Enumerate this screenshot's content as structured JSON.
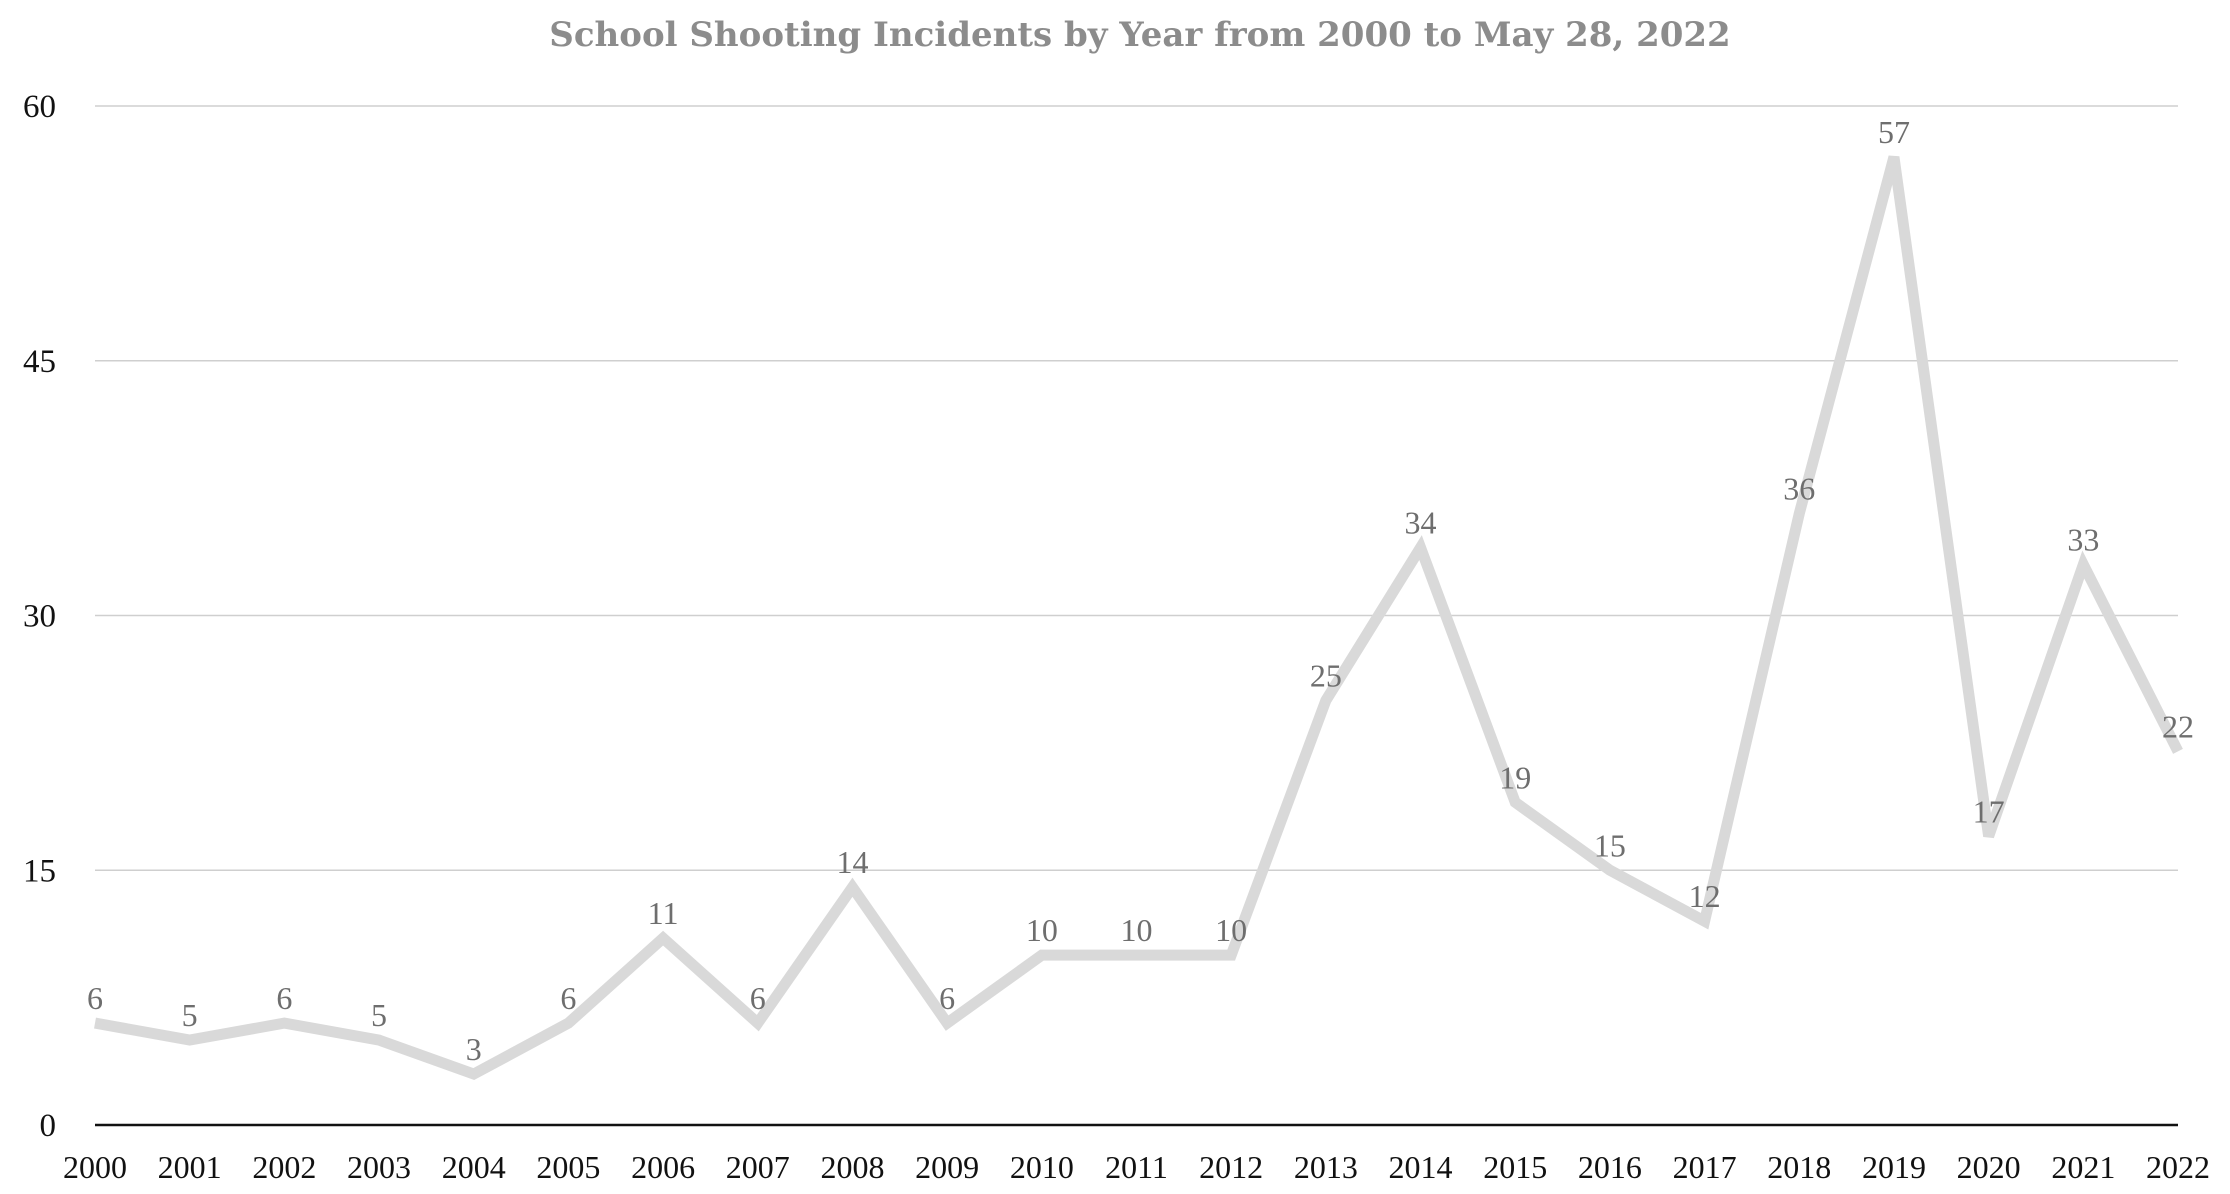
{
  "chart_data": {
    "type": "line",
    "title": "School Shooting Incidents by Year from 2000 to May 28, 2022",
    "xlabel": "",
    "ylabel": "",
    "categories": [
      "2000",
      "2001",
      "2002",
      "2003",
      "2004",
      "2005",
      "2006",
      "2007",
      "2008",
      "2009",
      "2010",
      "2011",
      "2012",
      "2013",
      "2014",
      "2015",
      "2016",
      "2017",
      "2018",
      "2019",
      "2020",
      "2021",
      "2022"
    ],
    "series": [
      {
        "values": [
          6,
          5,
          6,
          5,
          3,
          6,
          11,
          6,
          14,
          6,
          10,
          10,
          10,
          25,
          34,
          19,
          15,
          12,
          36,
          57,
          17,
          33,
          22
        ]
      }
    ],
    "ylim": [
      0,
      60
    ],
    "yticks": [
      0,
      15,
      30,
      45,
      60
    ],
    "grid": true,
    "data_labels": true,
    "line_color": "#d9d9d9"
  }
}
